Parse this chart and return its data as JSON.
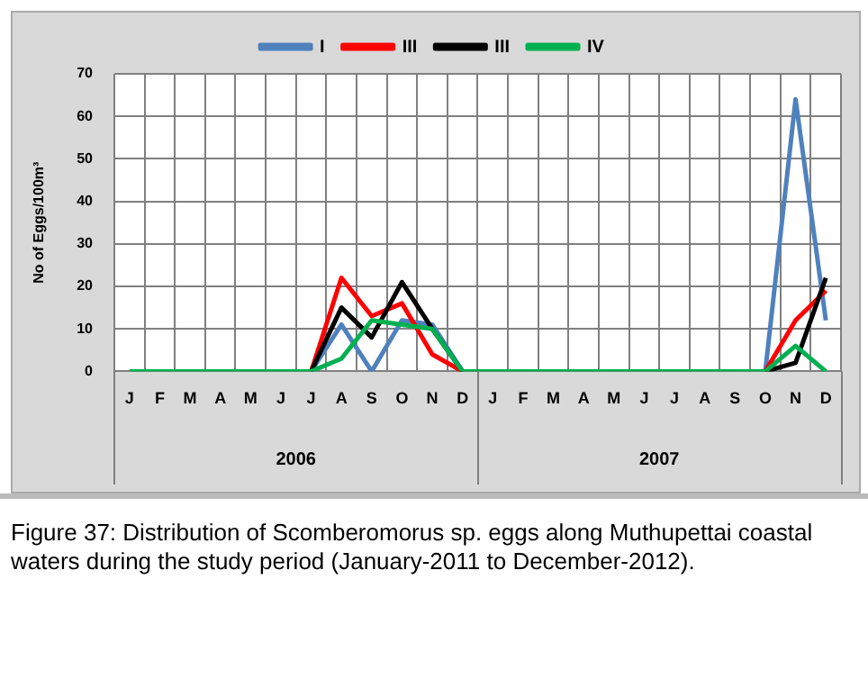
{
  "chart_data": {
    "type": "line",
    "ylabel": "No of Eggs/100m³",
    "categories": [
      "J",
      "F",
      "M",
      "A",
      "M",
      "J",
      "J",
      "A",
      "S",
      "O",
      "N",
      "D",
      "J",
      "F",
      "M",
      "A",
      "M",
      "J",
      "J",
      "A",
      "S",
      "O",
      "N",
      "D"
    ],
    "series": [
      {
        "name": "I",
        "color": "#4f81bd",
        "values": [
          null,
          null,
          null,
          null,
          null,
          null,
          0,
          11,
          0,
          12,
          11,
          0,
          null,
          null,
          null,
          null,
          null,
          null,
          null,
          null,
          null,
          0,
          64,
          12
        ]
      },
      {
        "name": "III",
        "color": "#ff0000",
        "values": [
          null,
          null,
          null,
          null,
          null,
          null,
          0,
          22,
          13,
          16,
          4,
          0,
          null,
          null,
          null,
          null,
          null,
          null,
          null,
          null,
          null,
          0,
          12,
          19
        ]
      },
      {
        "name": "III",
        "color": "#000000",
        "values": [
          null,
          null,
          null,
          null,
          null,
          null,
          0,
          15,
          8,
          21,
          10,
          0,
          null,
          null,
          null,
          null,
          null,
          null,
          null,
          null,
          null,
          0,
          2,
          22
        ]
      },
      {
        "name": "IV",
        "color": "#00b050",
        "values": [
          0,
          0,
          0,
          0,
          0,
          0,
          0,
          3,
          12,
          11,
          10,
          0,
          0,
          0,
          0,
          0,
          0,
          0,
          0,
          0,
          0,
          0,
          6,
          0
        ]
      }
    ],
    "ylim": [
      0,
      70
    ],
    "yticks": [
      0,
      10,
      20,
      30,
      40,
      50,
      60,
      70
    ],
    "grid": true,
    "legend": "top",
    "marker": "none",
    "annotations": [
      "2006",
      "2007",
      "Figure 37: Distribution of Scomberomorus sp. eggs along Muthupettai coastal waters during the study period (January-2011 to December-2012)."
    ]
  }
}
